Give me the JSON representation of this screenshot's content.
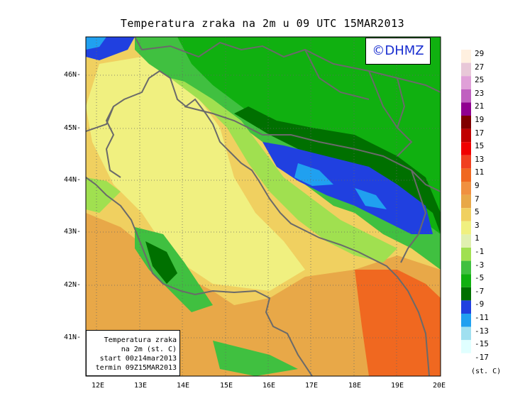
{
  "title": "Temperatura zraka na 2m u 09 UTC 15MAR2013",
  "logo_text": "©DHMZ",
  "info_box": {
    "line1": "Temperatura zraka",
    "line2": "na 2m (st. C)",
    "line3": "start 00z14mar2013",
    "line4": "termin 09Z15MAR2013"
  },
  "units": "(st. C)",
  "latitudes": [
    "46N",
    "45N",
    "44N",
    "43N",
    "42N",
    "41N"
  ],
  "longitudes": [
    "12E",
    "13E",
    "14E",
    "15E",
    "16E",
    "17E",
    "18E",
    "19E",
    "20E"
  ],
  "colorbar": [
    {
      "label": "29",
      "color": "#fff0e0"
    },
    {
      "label": "27",
      "color": "#e8c8d8"
    },
    {
      "label": "25",
      "color": "#e0a0d8"
    },
    {
      "label": "23",
      "color": "#c060c0"
    },
    {
      "label": "21",
      "color": "#900090"
    },
    {
      "label": "19",
      "color": "#800000"
    },
    {
      "label": "17",
      "color": "#c00000"
    },
    {
      "label": "15",
      "color": "#f00000"
    },
    {
      "label": "13",
      "color": "#f04020"
    },
    {
      "label": "11",
      "color": "#f06820"
    },
    {
      "label": "9",
      "color": "#f09040"
    },
    {
      "label": "7",
      "color": "#e8a848"
    },
    {
      "label": "5",
      "color": "#f0d060"
    },
    {
      "label": "3",
      "color": "#f0f080"
    },
    {
      "label": "1",
      "color": "#e0f0b0"
    },
    {
      "label": "-1",
      "color": "#a0e050"
    },
    {
      "label": "-3",
      "color": "#40c040"
    },
    {
      "label": "-5",
      "color": "#10b010"
    },
    {
      "label": "-7",
      "color": "#007000"
    },
    {
      "label": "-9",
      "color": "#2040e0"
    },
    {
      "label": "-11",
      "color": "#20a0f0"
    },
    {
      "label": "-13",
      "color": "#a0e0f0"
    },
    {
      "label": "-15",
      "color": "#e0ffff"
    },
    {
      "label": "-17",
      "color": "#ffffff"
    }
  ]
}
